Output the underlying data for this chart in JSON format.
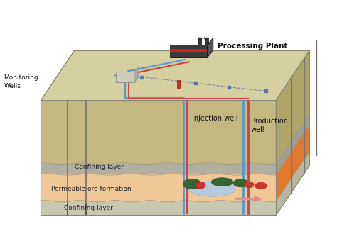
{
  "labels": {
    "processing_plant": "Processing Plant",
    "monitoring_wells": "Monitoring\nWells",
    "injection_well": "Injection well",
    "production_well": "Production\nwell",
    "confining_layer_top": "Confining layer",
    "permeable_ore": "Permeable ore formation",
    "confining_layer_bottom": "Confining layer"
  },
  "colors": {
    "soil_top_face": "#d6cfa0",
    "soil_front": "#c8bc88",
    "soil_right": "#b8aa78",
    "conf_gray_front": "#b0afa0",
    "conf_gray_right": "#a0a090",
    "perm_ore_front": "#f0c890",
    "perm_ore_right": "#e0b070",
    "bot_conf_front": "#c8c8a8",
    "bot_conf_right": "#b8b898",
    "pipe_blue": "#5599cc",
    "pipe_red": "#cc4444",
    "well_gray": "#888888",
    "plant_body": "#333333",
    "plant_red": "#cc2222",
    "plant_side": "#555555",
    "mon_box": "#ccccbb",
    "ore_green": "#338833",
    "ore_red": "#cc3333",
    "ore_pool": "#99bbdd",
    "outline": "#888877"
  }
}
